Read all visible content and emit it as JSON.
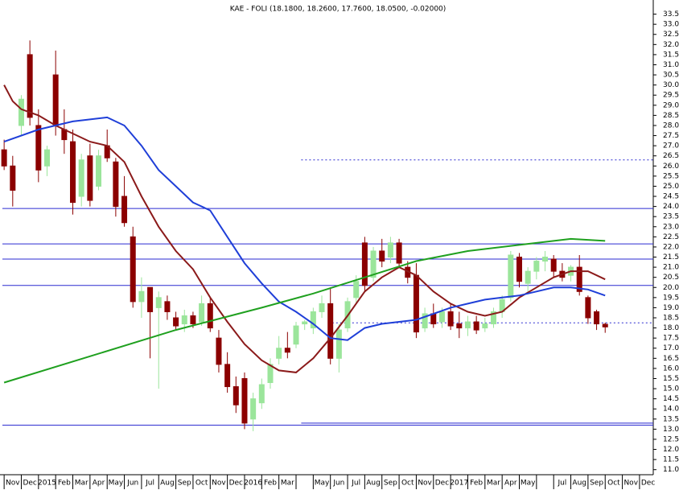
{
  "chart_data": {
    "type": "candlestick",
    "title": "KAE - FOLI (18.1800, 18.2600, 17.7600, 18.0500, -0.02000)",
    "categories": [
      "Nov",
      "Dec",
      "2015",
      "Feb",
      "Mar",
      "Apr",
      "May",
      "Jun",
      "Jul",
      "Aug",
      "Sep",
      "Oct",
      "Nov",
      "Dec",
      "2016",
      "Feb",
      "Mar",
      null,
      "May",
      "Jun",
      "Jul",
      "Aug",
      "Sep",
      "Oct",
      "Nov",
      "Dec",
      "2017",
      "Feb",
      "Mar",
      "Apr",
      "May",
      null,
      "Jul",
      "Aug",
      "Sep",
      "Oct",
      "Nov",
      "Dec"
    ],
    "xlim": [
      -0.1,
      37.8
    ],
    "ylim": [
      10.75,
      34.0
    ],
    "yticks": [
      {
        "value": 11,
        "label": "11.0"
      },
      11.5,
      {
        "value": 12,
        "label": "12.0"
      },
      12.5,
      {
        "value": 13,
        "label": "13.0"
      },
      13.5,
      {
        "value": 14,
        "label": "14.0"
      },
      14.5,
      {
        "value": 15,
        "label": "15.0"
      },
      15.5,
      {
        "value": 16,
        "label": "16.0"
      },
      16.5,
      {
        "value": 17,
        "label": "17.0"
      },
      17.5,
      {
        "value": 18,
        "label": "18.0"
      },
      18.5,
      {
        "value": 19,
        "label": "19.0"
      },
      19.5,
      {
        "value": 20,
        "label": "20.0"
      },
      20.5,
      {
        "value": 21,
        "label": "21.0"
      },
      21.5,
      {
        "value": 22,
        "label": "22.0"
      },
      22.5,
      {
        "value": 23,
        "label": "23.0"
      },
      23.5,
      {
        "value": 24,
        "label": "24.0"
      },
      24.5,
      {
        "value": 25,
        "label": "25.0"
      },
      25.5,
      {
        "value": 26,
        "label": "26.0"
      },
      26.5,
      {
        "value": 27,
        "label": "27.0"
      },
      27.5,
      {
        "value": 28,
        "label": "28.0"
      },
      28.5,
      {
        "value": 29,
        "label": "29.0"
      },
      29.5,
      {
        "value": 30,
        "label": "30.0"
      },
      30.5,
      {
        "value": 31,
        "label": "31.0"
      },
      31.5,
      {
        "value": 32,
        "label": "32.0"
      },
      32.5,
      {
        "value": 33,
        "label": "33.0"
      },
      33.5
    ],
    "candles": {
      "up_color": "#9be59b",
      "down_color": "#8b0000",
      "x": [
        0,
        0.5,
        1,
        1.5,
        2,
        2.5,
        3,
        3.5,
        4,
        4.5,
        5,
        5.5,
        6,
        6.5,
        7,
        7.5,
        8,
        8.5,
        9,
        9.5,
        10,
        10.5,
        11,
        11.5,
        12,
        12.5,
        13,
        13.5,
        14,
        14.5,
        15,
        15.5,
        16,
        16.5,
        17,
        17.5,
        18,
        18.5,
        19,
        19.5,
        20,
        20.5,
        21,
        21.5,
        22,
        22.5,
        23,
        23.5,
        24,
        24.5,
        25,
        25.5,
        26,
        26.5,
        27,
        27.5,
        28,
        28.5,
        29,
        29.5,
        30,
        30.5,
        31,
        31.5,
        32,
        32.5,
        33,
        33.5,
        34,
        34.5,
        35
      ],
      "open": [
        26.8,
        26.0,
        28.0,
        31.5,
        28.0,
        26.0,
        30.5,
        27.8,
        27.2,
        24.5,
        26.5,
        25.0,
        27.0,
        26.2,
        24.5,
        22.5,
        19.3,
        20.0,
        19.0,
        19.3,
        18.5,
        18.2,
        18.6,
        18.3,
        19.2,
        17.5,
        16.2,
        15.1,
        15.5,
        13.5,
        14.3,
        15.3,
        16.5,
        17.0,
        17.2,
        18.2,
        18.0,
        18.8,
        19.2,
        16.5,
        18.0,
        19.5,
        22.2,
        20.5,
        21.8,
        21.5,
        22.2,
        21.0,
        20.6,
        18.0,
        18.7,
        18.3,
        18.8,
        18.2,
        18.0,
        18.3,
        18.0,
        18.2,
        18.8,
        19.5,
        21.5,
        20.2,
        20.8,
        21.3,
        21.4,
        20.8,
        20.6,
        21.0,
        19.5,
        18.8,
        18.18
      ],
      "high": [
        27.3,
        26.5,
        29.5,
        32.2,
        28.8,
        27.0,
        31.7,
        28.8,
        27.8,
        26.6,
        27.1,
        26.8,
        27.8,
        26.4,
        25.5,
        23.0,
        20.5,
        20.0,
        19.8,
        19.6,
        18.8,
        18.9,
        18.8,
        19.6,
        19.5,
        17.9,
        16.8,
        15.6,
        15.8,
        14.8,
        15.5,
        16.5,
        17.6,
        17.8,
        18.3,
        18.4,
        19.0,
        19.6,
        20.0,
        18.2,
        19.5,
        20.6,
        22.5,
        22.0,
        22.4,
        22.5,
        22.4,
        21.3,
        21.2,
        19.0,
        19.2,
        19.0,
        19.2,
        18.8,
        18.6,
        18.6,
        18.5,
        19.0,
        19.6,
        21.8,
        21.7,
        21.0,
        21.5,
        21.8,
        21.6,
        21.2,
        21.1,
        21.6,
        19.6,
        18.9,
        18.26
      ],
      "low": [
        25.8,
        24.0,
        27.5,
        28.0,
        25.2,
        25.5,
        27.5,
        26.6,
        23.6,
        24.0,
        24.0,
        24.8,
        26.2,
        23.5,
        23.0,
        19.0,
        18.5,
        16.5,
        15.0,
        18.4,
        17.9,
        17.8,
        18.0,
        18.1,
        17.8,
        15.8,
        14.8,
        13.8,
        13.0,
        12.9,
        14.0,
        15.0,
        16.2,
        16.5,
        17.0,
        17.9,
        17.7,
        18.5,
        16.2,
        15.8,
        17.8,
        19.2,
        19.8,
        20.3,
        21.0,
        21.2,
        21.0,
        20.2,
        17.5,
        17.8,
        18.0,
        18.0,
        17.9,
        17.5,
        17.6,
        17.7,
        17.8,
        18.0,
        18.5,
        19.3,
        20.0,
        19.8,
        20.4,
        20.8,
        20.5,
        20.3,
        20.3,
        19.6,
        18.2,
        17.9,
        17.76
      ],
      "close": [
        26.0,
        24.8,
        29.3,
        28.4,
        25.8,
        26.8,
        28.0,
        27.3,
        24.2,
        26.3,
        24.3,
        26.5,
        26.4,
        24.0,
        23.2,
        19.3,
        19.8,
        18.8,
        19.5,
        18.8,
        18.1,
        18.6,
        18.2,
        19.2,
        18.0,
        16.2,
        15.1,
        14.2,
        13.3,
        14.5,
        15.2,
        16.2,
        17.0,
        16.8,
        18.1,
        18.3,
        18.8,
        19.2,
        16.5,
        17.9,
        19.3,
        20.3,
        20.1,
        21.8,
        21.3,
        22.2,
        21.2,
        20.5,
        17.8,
        18.7,
        18.2,
        18.8,
        18.1,
        18.0,
        18.3,
        17.9,
        18.2,
        18.8,
        19.4,
        21.6,
        20.3,
        20.8,
        21.3,
        21.5,
        20.8,
        20.5,
        21.0,
        19.8,
        18.5,
        18.2,
        18.05
      ]
    },
    "series": [
      {
        "color": "#8b1a1a",
        "x": [
          0,
          0.5,
          1,
          2,
          3,
          4,
          5,
          6,
          7,
          8,
          9,
          10,
          11,
          12,
          13,
          14,
          15,
          16,
          17,
          18,
          19,
          20,
          21,
          22,
          23,
          24,
          25,
          26,
          27,
          28,
          29,
          30,
          31,
          32,
          33,
          34,
          35
        ],
        "values": [
          30.0,
          29.2,
          28.8,
          28.5,
          28.0,
          27.6,
          27.2,
          27.0,
          26.2,
          24.5,
          23.0,
          21.8,
          20.9,
          19.5,
          18.3,
          17.2,
          16.4,
          15.9,
          15.8,
          16.5,
          17.5,
          18.6,
          19.8,
          20.5,
          21.0,
          20.6,
          19.8,
          19.2,
          18.8,
          18.6,
          18.8,
          19.5,
          20.0,
          20.5,
          20.8,
          20.8,
          20.4
        ]
      },
      {
        "color": "#1f3fd8",
        "x": [
          0,
          2,
          4,
          6,
          7,
          8,
          9,
          10,
          11,
          12,
          13,
          14,
          15,
          16,
          17,
          18,
          19,
          20,
          21,
          22,
          23,
          24,
          25,
          26,
          27,
          28,
          29,
          30,
          31,
          32,
          33,
          34,
          35
        ],
        "values": [
          27.2,
          27.8,
          28.2,
          28.4,
          28.0,
          27.0,
          25.8,
          25.0,
          24.2,
          23.8,
          22.5,
          21.2,
          20.2,
          19.3,
          18.8,
          18.2,
          17.5,
          17.4,
          18.0,
          18.2,
          18.3,
          18.4,
          18.7,
          19.0,
          19.2,
          19.4,
          19.5,
          19.6,
          19.8,
          20.0,
          20.0,
          19.9,
          19.6
        ]
      },
      {
        "color": "#1fa01f",
        "x": [
          0,
          5,
          10,
          15,
          18,
          21,
          24,
          27,
          30,
          33,
          35
        ],
        "values": [
          15.3,
          16.6,
          17.9,
          19.0,
          19.7,
          20.5,
          21.3,
          21.8,
          22.1,
          22.4,
          22.3
        ]
      }
    ],
    "levels": {
      "color": "#2a2ad0",
      "values": [
        23.9,
        22.15,
        21.4,
        20.1,
        13.2
      ]
    },
    "partial_levels": [
      {
        "from": 17.3,
        "values": [
          13.3
        ],
        "dashed": false
      },
      {
        "from": 17.3,
        "values": [
          26.3
        ],
        "dashed": true
      },
      {
        "from": 19.1,
        "values": [
          18.25
        ],
        "dashed": true
      }
    ]
  }
}
